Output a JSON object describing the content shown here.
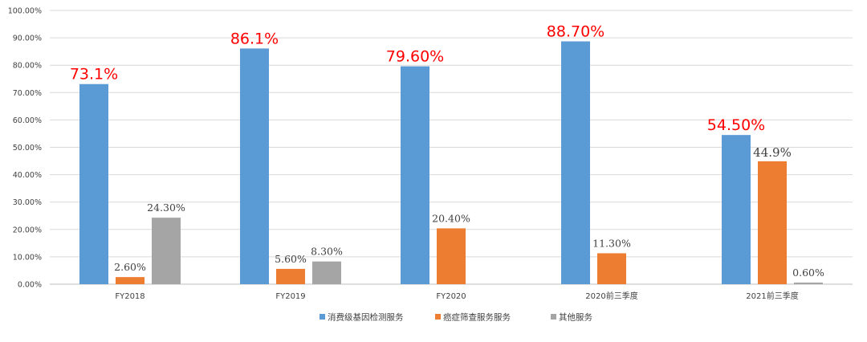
{
  "chart_data": {
    "type": "bar",
    "categories": [
      "FY2018",
      "FY2019",
      "FY2020",
      "2020前三季度",
      "2021前三季度"
    ],
    "series": [
      {
        "name": "消费级基因检测服务",
        "color": "#5b9bd5",
        "values": [
          73.1,
          86.1,
          79.6,
          88.7,
          54.5
        ],
        "labels": [
          "73.1%",
          "86.1%",
          "79.60%",
          "88.70%",
          "54.50%"
        ],
        "label_style": "big"
      },
      {
        "name": "癌症筛查服务服务",
        "color": "#ed7d31",
        "values": [
          2.6,
          5.6,
          20.4,
          11.3,
          44.9
        ],
        "labels": [
          "2.60%",
          "5.60%",
          "20.40%",
          "11.30%",
          "44.9%"
        ],
        "label_style": "small"
      },
      {
        "name": "其他服务",
        "color": "#a5a5a5",
        "values": [
          24.3,
          8.3,
          null,
          null,
          0.6
        ],
        "labels": [
          "24.30%",
          "8.30%",
          "",
          "",
          "0.60%"
        ],
        "label_style": "small"
      }
    ],
    "y_ticks": [
      "0.00%",
      "10.00%",
      "20.00%",
      "30.00%",
      "40.00%",
      "50.00%",
      "60.00%",
      "70.00%",
      "80.00%",
      "90.00%",
      "100.00%"
    ],
    "ylim": [
      0,
      100
    ],
    "grid": true,
    "legend_position": "bottom",
    "label_color": "#ff0000",
    "grid_color": "#d9d9d9",
    "axis_color": "#bfbfbf"
  }
}
